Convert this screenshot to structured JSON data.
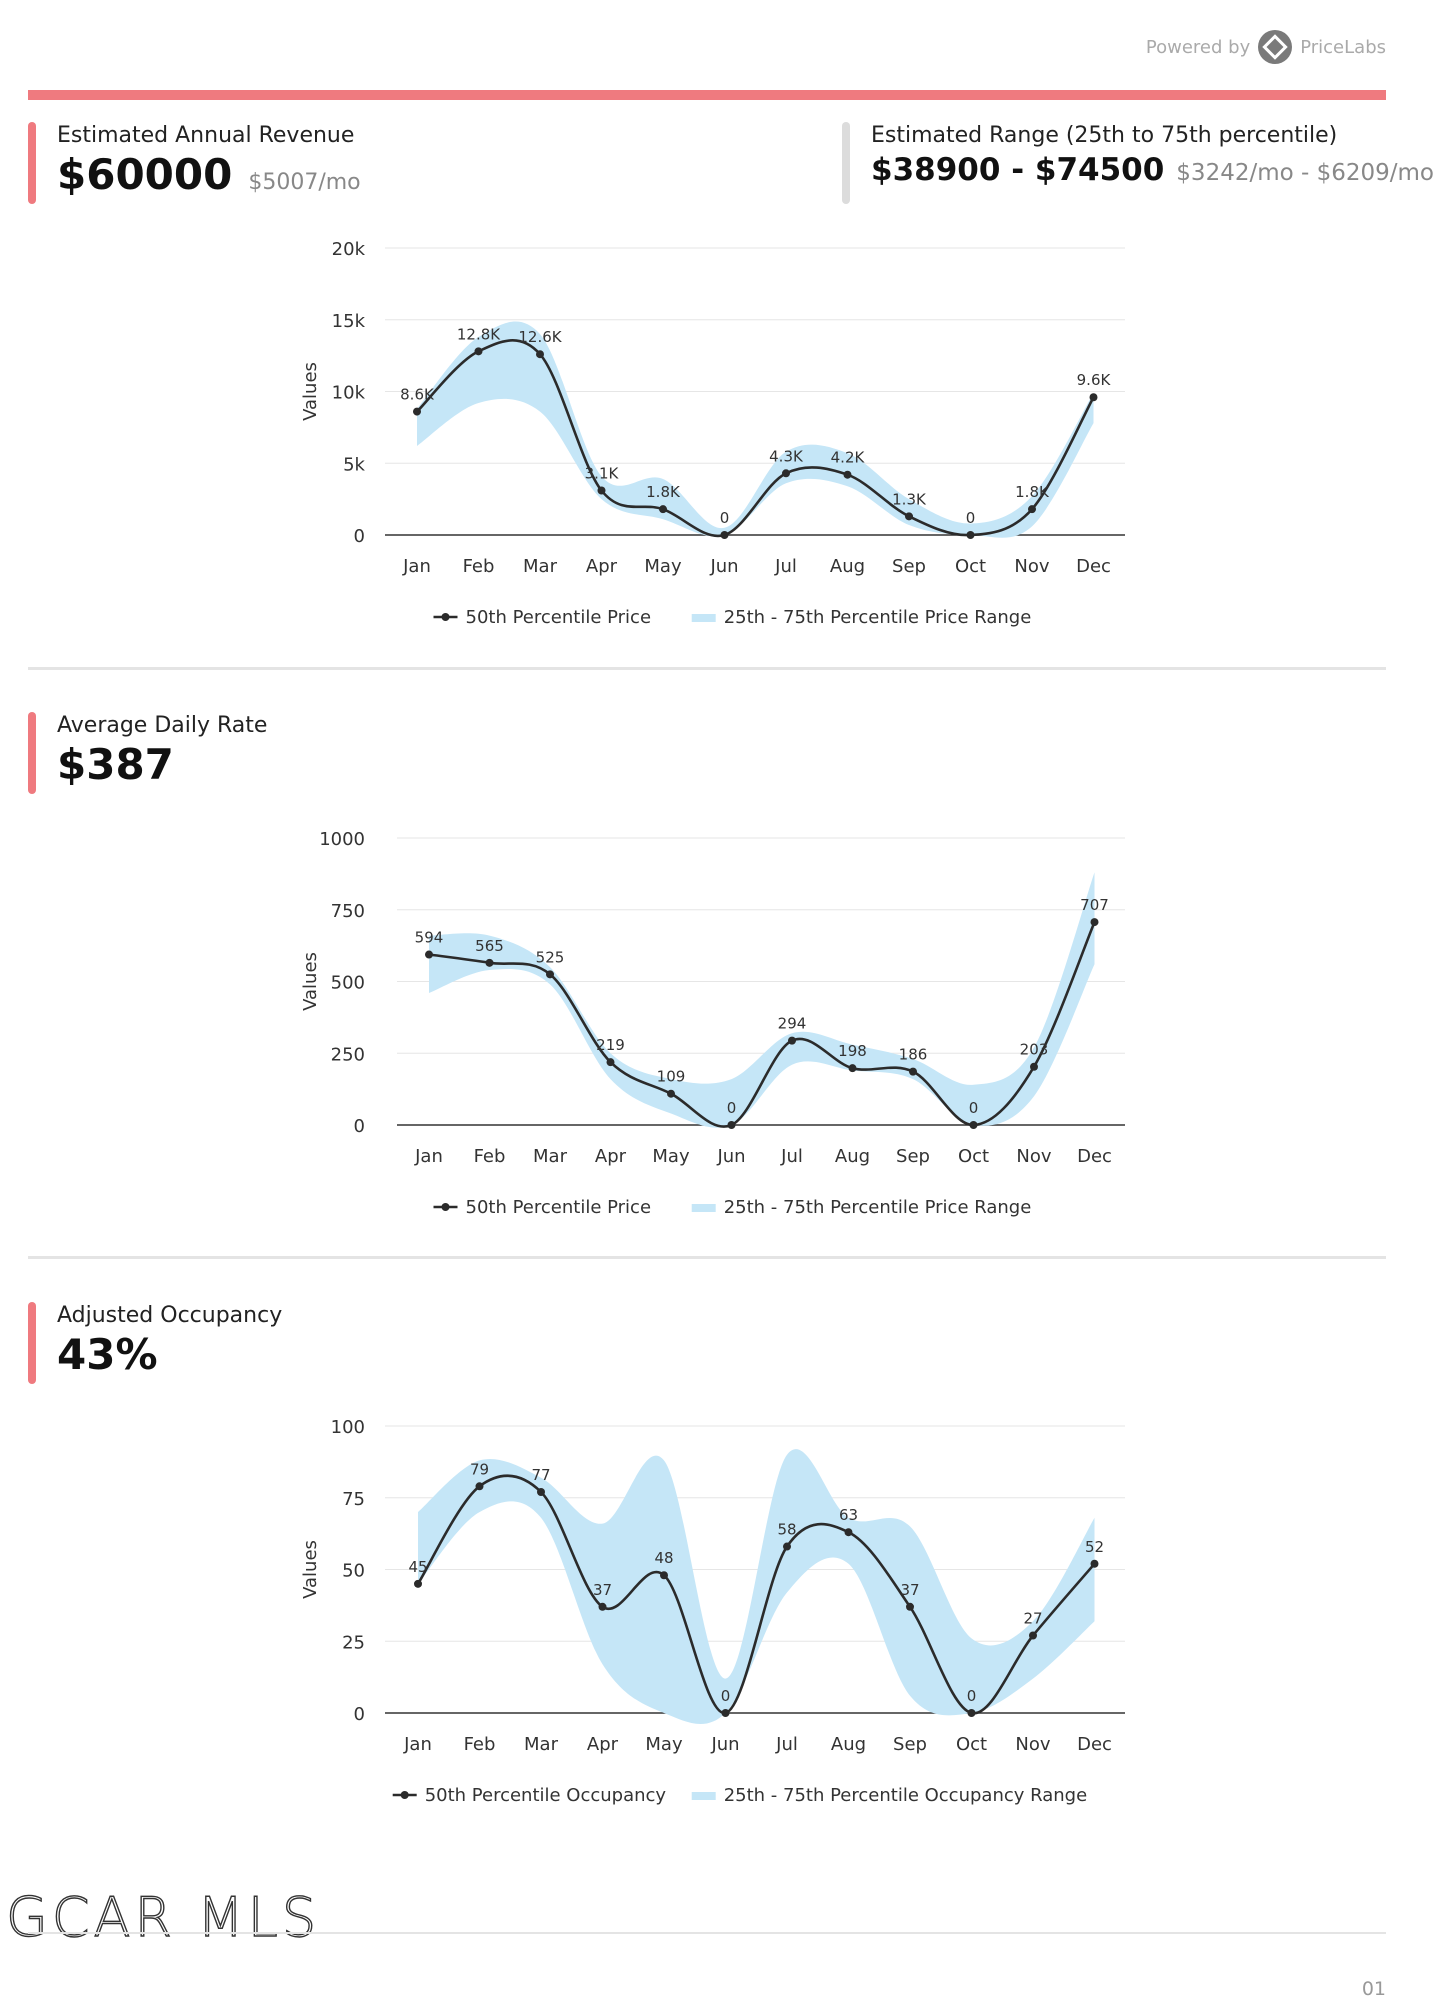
{
  "header": {
    "powered_by": "Powered by",
    "brand": "PriceLabs",
    "accent_color": "#ef7a7f"
  },
  "metrics": {
    "revenue": {
      "label": "Estimated Annual Revenue",
      "value": "$60000",
      "sub": "$5007/mo"
    },
    "range": {
      "label": "Estimated Range (25th to 75th percentile)",
      "value": "$38900 - $74500",
      "sub": "$3242/mo - $6209/mo"
    },
    "adr": {
      "label": "Average Daily Rate",
      "value": "$387"
    },
    "occupancy": {
      "label": "Adjusted Occupancy",
      "value": "43%"
    }
  },
  "chart_data": [
    {
      "type": "line",
      "categories": [
        "Jan",
        "Feb",
        "Mar",
        "Apr",
        "May",
        "Jun",
        "Jul",
        "Aug",
        "Sep",
        "Oct",
        "Nov",
        "Dec"
      ],
      "ylabel": "Values",
      "ylim": [
        0,
        20000
      ],
      "yticks": [
        0,
        5000,
        10000,
        15000,
        20000
      ],
      "ytick_labels": [
        "0",
        "5k",
        "10k",
        "15k",
        "20k"
      ],
      "grid": true,
      "legend_position": "bottom",
      "series": [
        {
          "name": "50th Percentile Price",
          "values": [
            8600,
            12800,
            12600,
            3100,
            1800,
            0,
            4300,
            4200,
            1300,
            0,
            1800,
            9600
          ],
          "labels": [
            "8.6K",
            "12.8K",
            "12.6K",
            "3.1K",
            "1.8K",
            "0",
            "4.3K",
            "4.2K",
            "1.3K",
            "0",
            "1.8K",
            "9.6K"
          ]
        },
        {
          "name": "25th - 75th Percentile Price Range",
          "type": "area",
          "low": [
            6200,
            9200,
            8600,
            2500,
            1100,
            0,
            3600,
            3400,
            700,
            0,
            600,
            7800
          ],
          "high": [
            8800,
            13800,
            14000,
            4100,
            3900,
            500,
            5800,
            5700,
            2500,
            800,
            2700,
            9900
          ]
        }
      ],
      "colors": {
        "line": "#2b2b2b",
        "band": "#c5e6f7"
      }
    },
    {
      "type": "line",
      "categories": [
        "Jan",
        "Feb",
        "Mar",
        "Apr",
        "May",
        "Jun",
        "Jul",
        "Aug",
        "Sep",
        "Oct",
        "Nov",
        "Dec"
      ],
      "ylabel": "Values",
      "ylim": [
        0,
        1000
      ],
      "yticks": [
        0,
        250,
        500,
        750,
        1000
      ],
      "ytick_labels": [
        "0",
        "250",
        "500",
        "750",
        "1000"
      ],
      "grid": true,
      "legend_position": "bottom",
      "series": [
        {
          "name": "50th Percentile Price",
          "values": [
            594,
            565,
            525,
            219,
            109,
            0,
            294,
            198,
            186,
            0,
            203,
            707
          ],
          "labels": [
            "594",
            "565",
            "525",
            "219",
            "109",
            "0",
            "294",
            "198",
            "186",
            "0",
            "203",
            "707"
          ]
        },
        {
          "name": "25th - 75th Percentile Price Range",
          "type": "area",
          "low": [
            460,
            540,
            490,
            160,
            40,
            0,
            210,
            190,
            160,
            0,
            100,
            560
          ],
          "high": [
            660,
            660,
            550,
            250,
            160,
            160,
            320,
            280,
            230,
            140,
            270,
            880
          ]
        }
      ],
      "colors": {
        "line": "#2b2b2b",
        "band": "#c5e6f7"
      }
    },
    {
      "type": "line",
      "categories": [
        "Jan",
        "Feb",
        "Mar",
        "Apr",
        "May",
        "Jun",
        "Jul",
        "Aug",
        "Sep",
        "Oct",
        "Nov",
        "Dec"
      ],
      "ylabel": "Values",
      "ylim": [
        0,
        100
      ],
      "yticks": [
        0,
        25,
        50,
        75,
        100
      ],
      "ytick_labels": [
        "0",
        "25",
        "50",
        "75",
        "100"
      ],
      "grid": true,
      "legend_position": "bottom",
      "series": [
        {
          "name": "50th Percentile Occupancy",
          "values": [
            45,
            79,
            77,
            37,
            48,
            0,
            58,
            63,
            37,
            0,
            27,
            52
          ],
          "labels": [
            "45",
            "79",
            "77",
            "37",
            "48",
            "0",
            "58",
            "63",
            "37",
            "0",
            "27",
            "52"
          ]
        },
        {
          "name": "25th - 75th Percentile Occupancy Range",
          "type": "area",
          "low": [
            45,
            70,
            68,
            17,
            0,
            0,
            42,
            52,
            6,
            0,
            12,
            32
          ],
          "high": [
            70,
            88,
            82,
            66,
            88,
            12,
            90,
            68,
            65,
            26,
            32,
            68
          ]
        }
      ],
      "colors": {
        "line": "#2b2b2b",
        "band": "#c5e6f7"
      }
    }
  ],
  "footer": {
    "logo": "GCAR MLS",
    "page": "01"
  }
}
